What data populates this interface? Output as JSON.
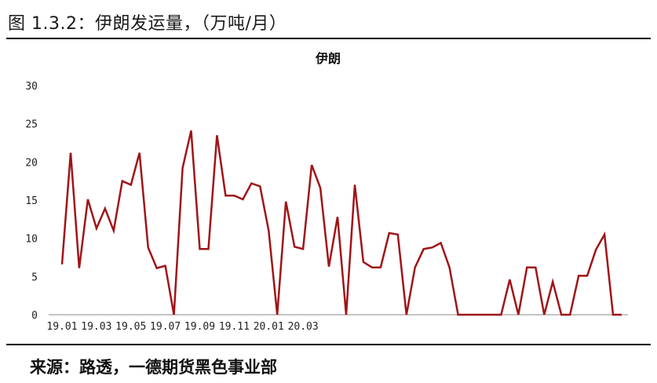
{
  "figure_title": "图 1.3.2：伊朗发运量，（万吨/月）",
  "source": "来源：路透，一德期货黑色事业部",
  "chart_data": {
    "type": "line",
    "title": "伊朗",
    "xlabel": "",
    "ylabel": "",
    "ylim": [
      0,
      30
    ],
    "yticks": [
      "0",
      "5",
      "10",
      "15",
      "20",
      "25",
      "30"
    ],
    "xtick_labels": [
      "19.01",
      "19.03",
      "19.05",
      "19.07",
      "19.09",
      "19.11",
      "20.01",
      "20.03"
    ],
    "grid": false,
    "legend": "none",
    "line_color": "#a01418",
    "values": [
      6.6,
      21.2,
      6.1,
      15.1,
      11.3,
      13.9,
      11.0,
      17.5,
      17.0,
      21.2,
      8.8,
      6.1,
      6.4,
      0.0,
      19.2,
      24.1,
      8.6,
      8.6,
      23.5,
      15.6,
      15.6,
      15.1,
      17.2,
      16.8,
      11.0,
      0.0,
      14.8,
      8.9,
      8.6,
      19.6,
      16.6,
      6.3,
      12.8,
      0.0,
      17.0,
      6.9,
      6.2,
      6.2,
      10.7,
      10.5,
      0.0,
      6.2,
      8.6,
      8.8,
      9.4,
      6.2,
      0.0,
      0.0,
      0.0,
      0.0,
      0.0,
      0.0,
      4.6,
      0.0,
      6.2,
      6.2,
      0.0,
      4.3,
      0.0,
      0.0,
      5.1,
      5.1,
      8.5,
      10.5,
      0.0,
      0.0
    ]
  }
}
